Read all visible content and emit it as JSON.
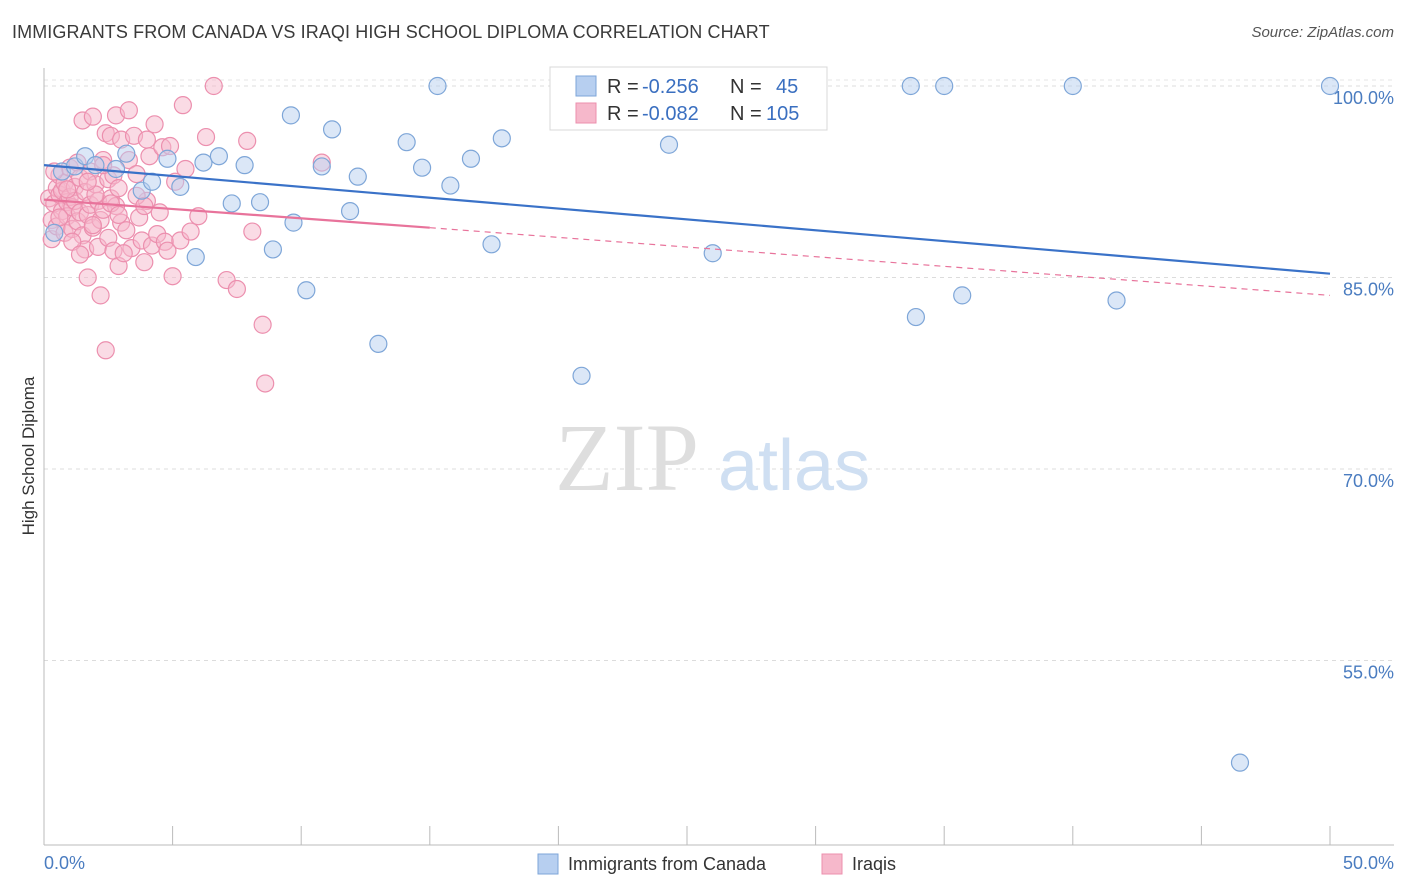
{
  "header": {
    "title": "IMMIGRANTS FROM CANADA VS IRAQI HIGH SCHOOL DIPLOMA CORRELATION CHART",
    "source": "Source: ZipAtlas.com"
  },
  "watermark": {
    "zip": "ZIP",
    "atlas": "atlas"
  },
  "colors": {
    "canada_fill": "#b7cff0",
    "canada_stroke": "#7ea6d8",
    "canada_line": "#3a72c8",
    "iraqi_fill": "#f6b8cb",
    "iraqi_stroke": "#ec8fae",
    "iraqi_line": "#e8739b",
    "tick_label": "#4a7cc0"
  },
  "legend": {
    "r_label": "R =",
    "n_label": "N =",
    "rows": [
      {
        "r": "-0.256",
        "n": "45"
      },
      {
        "r": "-0.082",
        "n": "105"
      }
    ]
  },
  "bottom_legend": [
    "Immigrants from Canada",
    "Iraqis"
  ],
  "chart_data": {
    "type": "scatter",
    "ylabel": "High School Diploma",
    "xlim": [
      0,
      50
    ],
    "ylim": [
      40,
      102
    ],
    "x_tick_labels": [
      "0.0%",
      "50.0%"
    ],
    "y_ticks": [
      100,
      85,
      70,
      55
    ],
    "y_tick_labels": [
      "100.0%",
      "85.0%",
      "70.0%",
      "55.0%"
    ],
    "grid": true,
    "series": [
      {
        "name": "Immigrants from Canada",
        "trend": {
          "x": [
            0,
            50
          ],
          "y": [
            93.8,
            85.3
          ],
          "dashed_to": null
        },
        "points": [
          [
            0.4,
            88.5
          ],
          [
            0.7,
            93.3
          ],
          [
            1.2,
            93.7
          ],
          [
            1.6,
            94.5
          ],
          [
            2.0,
            93.8
          ],
          [
            2.8,
            93.5
          ],
          [
            3.2,
            94.7
          ],
          [
            3.8,
            91.8
          ],
          [
            4.2,
            92.5
          ],
          [
            4.8,
            94.3
          ],
          [
            5.3,
            92.1
          ],
          [
            5.9,
            86.6
          ],
          [
            6.2,
            94.0
          ],
          [
            6.8,
            94.5
          ],
          [
            7.3,
            90.8
          ],
          [
            7.8,
            93.8
          ],
          [
            8.4,
            90.9
          ],
          [
            8.9,
            87.2
          ],
          [
            9.6,
            97.7
          ],
          [
            9.7,
            89.3
          ],
          [
            10.2,
            84.0
          ],
          [
            10.8,
            93.7
          ],
          [
            11.2,
            96.6
          ],
          [
            11.9,
            90.2
          ],
          [
            12.2,
            92.9
          ],
          [
            13.0,
            79.8
          ],
          [
            14.1,
            95.6
          ],
          [
            14.7,
            93.6
          ],
          [
            15.3,
            100.0
          ],
          [
            15.8,
            92.2
          ],
          [
            16.6,
            94.3
          ],
          [
            17.4,
            87.6
          ],
          [
            17.8,
            95.9
          ],
          [
            20.9,
            77.3
          ],
          [
            24.3,
            95.4
          ],
          [
            26.0,
            86.9
          ],
          [
            28.8,
            100.0
          ],
          [
            33.7,
            100.0
          ],
          [
            33.9,
            81.9
          ],
          [
            35.0,
            100.0
          ],
          [
            35.7,
            83.6
          ],
          [
            40.0,
            100.0
          ],
          [
            41.7,
            83.2
          ],
          [
            46.5,
            47.0
          ],
          [
            50.0,
            100.0
          ]
        ]
      },
      {
        "name": "Iraqis",
        "trend": {
          "x": [
            0,
            15
          ],
          "y": [
            91.1,
            88.9
          ],
          "dashed_to": [
            50,
            83.6
          ]
        },
        "points": [
          [
            0.2,
            91.2
          ],
          [
            0.3,
            89.5
          ],
          [
            0.3,
            88.0
          ],
          [
            0.4,
            90.8
          ],
          [
            0.5,
            92.0
          ],
          [
            0.5,
            89.0
          ],
          [
            0.6,
            91.5
          ],
          [
            0.6,
            93.0
          ],
          [
            0.7,
            90.2
          ],
          [
            0.7,
            91.8
          ],
          [
            0.8,
            88.5
          ],
          [
            0.8,
            92.4
          ],
          [
            0.9,
            90.9
          ],
          [
            0.9,
            89.8
          ],
          [
            1.0,
            91.3
          ],
          [
            1.0,
            93.6
          ],
          [
            1.1,
            90.5
          ],
          [
            1.1,
            88.8
          ],
          [
            1.2,
            92.1
          ],
          [
            1.2,
            91.0
          ],
          [
            1.3,
            89.4
          ],
          [
            1.3,
            94.0
          ],
          [
            1.4,
            90.1
          ],
          [
            1.4,
            92.8
          ],
          [
            1.5,
            97.3
          ],
          [
            1.5,
            88.3
          ],
          [
            1.6,
            91.7
          ],
          [
            1.6,
            87.2
          ],
          [
            1.7,
            89.9
          ],
          [
            1.7,
            85.0
          ],
          [
            1.8,
            93.3
          ],
          [
            1.8,
            90.7
          ],
          [
            1.9,
            97.6
          ],
          [
            1.9,
            88.9
          ],
          [
            2.0,
            92.3
          ],
          [
            2.1,
            91.0
          ],
          [
            2.1,
            87.4
          ],
          [
            2.2,
            89.5
          ],
          [
            2.2,
            83.6
          ],
          [
            2.3,
            94.2
          ],
          [
            2.3,
            90.3
          ],
          [
            2.4,
            96.3
          ],
          [
            2.4,
            79.3
          ],
          [
            2.5,
            92.7
          ],
          [
            2.5,
            88.1
          ],
          [
            2.6,
            96.1
          ],
          [
            2.6,
            91.2
          ],
          [
            2.7,
            87.1
          ],
          [
            2.7,
            93.0
          ],
          [
            2.8,
            97.7
          ],
          [
            2.8,
            90.6
          ],
          [
            2.9,
            85.9
          ],
          [
            2.9,
            92.0
          ],
          [
            3.0,
            95.8
          ],
          [
            3.0,
            89.3
          ],
          [
            3.2,
            88.7
          ],
          [
            3.3,
            98.1
          ],
          [
            3.3,
            94.2
          ],
          [
            3.4,
            87.3
          ],
          [
            3.5,
            96.1
          ],
          [
            3.6,
            93.1
          ],
          [
            3.7,
            89.7
          ],
          [
            3.8,
            87.9
          ],
          [
            3.9,
            86.2
          ],
          [
            4.0,
            91.0
          ],
          [
            4.1,
            94.5
          ],
          [
            4.2,
            87.5
          ],
          [
            4.3,
            97.0
          ],
          [
            4.4,
            88.4
          ],
          [
            4.6,
            95.2
          ],
          [
            4.7,
            87.8
          ],
          [
            4.8,
            87.1
          ],
          [
            4.9,
            95.3
          ],
          [
            5.0,
            85.1
          ],
          [
            5.1,
            92.5
          ],
          [
            5.3,
            87.9
          ],
          [
            5.4,
            98.5
          ],
          [
            5.5,
            93.5
          ],
          [
            5.7,
            88.6
          ],
          [
            6.0,
            89.8
          ],
          [
            6.3,
            96.0
          ],
          [
            6.6,
            100.0
          ],
          [
            7.1,
            84.8
          ],
          [
            7.5,
            84.1
          ],
          [
            7.9,
            95.7
          ],
          [
            8.1,
            88.6
          ],
          [
            8.5,
            81.3
          ],
          [
            8.6,
            76.7
          ],
          [
            10.8,
            94.0
          ],
          [
            2.0,
            91.5
          ],
          [
            0.4,
            93.3
          ],
          [
            1.1,
            87.8
          ],
          [
            2.6,
            90.8
          ],
          [
            3.6,
            91.4
          ],
          [
            4.5,
            90.1
          ],
          [
            1.9,
            89.1
          ],
          [
            0.9,
            91.9
          ],
          [
            2.3,
            93.8
          ],
          [
            3.1,
            86.9
          ],
          [
            4.0,
            95.8
          ],
          [
            1.4,
            86.8
          ],
          [
            2.9,
            89.9
          ],
          [
            0.6,
            89.7
          ],
          [
            1.7,
            92.5
          ],
          [
            3.9,
            90.6
          ]
        ]
      }
    ]
  }
}
